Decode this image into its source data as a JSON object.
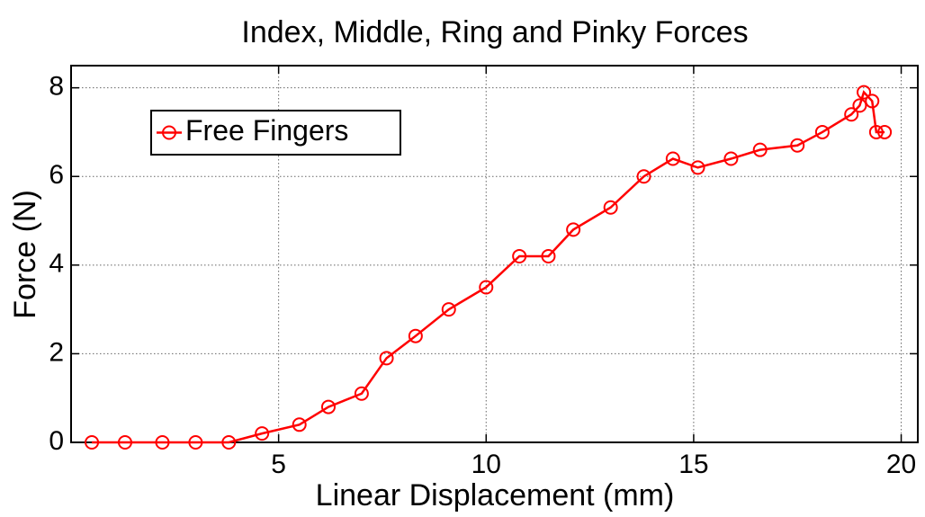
{
  "chart_data": {
    "type": "line",
    "title": "Index, Middle, Ring and Pinky Forces",
    "xlabel": "Linear Displacement (mm)",
    "ylabel": "Force (N)",
    "x": [
      0.5,
      1.3,
      2.2,
      3.0,
      3.8,
      4.6,
      5.5,
      6.2,
      7.0,
      7.6,
      8.3,
      9.1,
      10.0,
      10.8,
      11.5,
      12.1,
      13.0,
      13.8,
      14.5,
      15.1,
      15.9,
      16.6,
      17.5,
      18.1,
      18.8,
      19.0,
      19.1,
      19.3,
      19.4,
      19.6
    ],
    "series": [
      {
        "name": "Free Fingers",
        "color": "#ff0000",
        "values": [
          0,
          0,
          0,
          0,
          0,
          0.2,
          0.4,
          0.8,
          1.1,
          1.9,
          2.4,
          3.0,
          3.5,
          4.2,
          4.2,
          4.8,
          5.3,
          6.0,
          6.4,
          6.2,
          6.4,
          6.6,
          6.7,
          7.0,
          7.4,
          7.6,
          7.9,
          7.7,
          7.0,
          7.0
        ]
      }
    ],
    "xlim": [
      0,
      20.4
    ],
    "ylim": [
      0,
      8.5
    ],
    "xticks": [
      5,
      10,
      15,
      20
    ],
    "yticks": [
      0,
      2,
      4,
      6,
      8
    ],
    "grid": true,
    "legend": "upper left"
  }
}
